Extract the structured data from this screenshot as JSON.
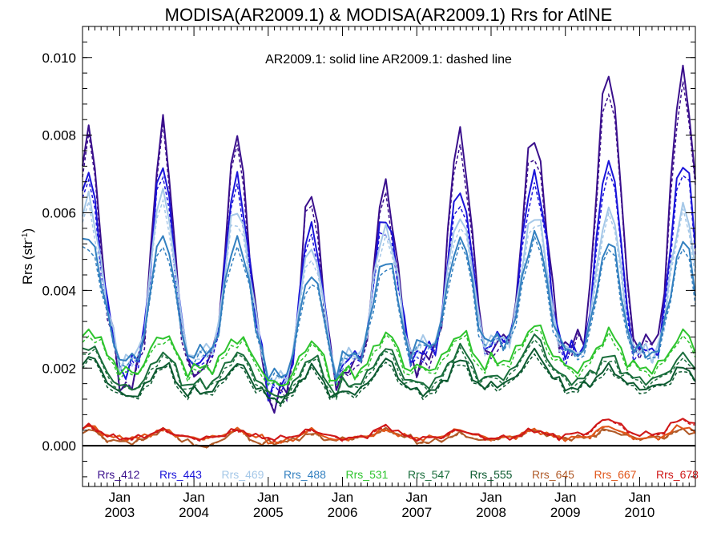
{
  "chart_data": {
    "type": "line",
    "title": "MODISA(AR2009.1) & MODISA(AR2009.1)  Rrs for AtlNE",
    "ylabel": "Rrs (str",
    "ylabel_sup": "-1",
    "annotation": "AR2009.1: solid line   AR2009.1: dashed line",
    "x_unit": "month index starting Jul 2002",
    "xlim": [
      0,
      99
    ],
    "ylim": [
      -0.00105,
      0.0108
    ],
    "yticks": [
      0.0,
      0.002,
      0.004,
      0.006,
      0.008,
      0.01
    ],
    "ytick_labels": [
      "0.000",
      "0.002",
      "0.004",
      "0.006",
      "0.008",
      "0.010"
    ],
    "xticks": [
      {
        "month": 6,
        "label_top": "Jan",
        "label_bottom": "2003"
      },
      {
        "month": 18,
        "label_top": "Jan",
        "label_bottom": "2004"
      },
      {
        "month": 30,
        "label_top": "Jan",
        "label_bottom": "2005"
      },
      {
        "month": 42,
        "label_top": "Jan",
        "label_bottom": "2006"
      },
      {
        "month": 54,
        "label_top": "Jan",
        "label_bottom": "2007"
      },
      {
        "month": 66,
        "label_top": "Jan",
        "label_bottom": "2008"
      },
      {
        "month": 78,
        "label_top": "Jan",
        "label_bottom": "2009"
      },
      {
        "month": 90,
        "label_top": "Jan",
        "label_bottom": "2010"
      }
    ],
    "grid": false,
    "legend_placement": "bottom",
    "series": [
      {
        "name": "Rrs_412",
        "color": "#3a0f8c",
        "peaks": [
          0.008,
          0.0081,
          0.0079,
          0.0065,
          0.0067,
          0.0081,
          0.0081,
          0.0098
        ],
        "troughs": [
          0.0024,
          0.0016,
          0.002,
          0.0012,
          0.002,
          0.0022,
          0.0026,
          0.0026
        ],
        "noise": 0.00045
      },
      {
        "name": "Rrs_443",
        "color": "#1a14d9",
        "peaks": [
          0.007,
          0.0072,
          0.0069,
          0.0057,
          0.006,
          0.0067,
          0.0071,
          0.0075
        ],
        "troughs": [
          0.0026,
          0.002,
          0.0022,
          0.0015,
          0.0022,
          0.0024,
          0.0027,
          0.0024
        ],
        "noise": 0.00035
      },
      {
        "name": "Rrs_469",
        "color": "#a5c8e8",
        "peaks": [
          0.0064,
          0.0066,
          0.0062,
          0.0052,
          0.0057,
          0.006,
          0.0061,
          0.0062
        ],
        "troughs": [
          0.0027,
          0.0022,
          0.0024,
          0.0017,
          0.0023,
          0.0026,
          0.0027,
          0.0024
        ],
        "noise": 0.0003
      },
      {
        "name": "Rrs_488",
        "color": "#3380c0",
        "peaks": [
          0.0055,
          0.0055,
          0.0054,
          0.0045,
          0.0049,
          0.0054,
          0.0055,
          0.0053
        ],
        "troughs": [
          0.0027,
          0.0022,
          0.0024,
          0.0018,
          0.0023,
          0.0026,
          0.0027,
          0.0024
        ],
        "noise": 0.00025
      },
      {
        "name": "Rrs_531",
        "color": "#2ec42e",
        "peaks": [
          0.003,
          0.0029,
          0.0028,
          0.0027,
          0.0029,
          0.0029,
          0.0031,
          0.0029
        ],
        "troughs": [
          0.0022,
          0.0019,
          0.002,
          0.0016,
          0.0019,
          0.002,
          0.0022,
          0.002
        ],
        "noise": 0.0002
      },
      {
        "name": "Rrs_547",
        "color": "#1a6e3c",
        "peaks": [
          0.0026,
          0.0024,
          0.0024,
          0.0023,
          0.0025,
          0.0025,
          0.0028,
          0.0023
        ],
        "troughs": [
          0.0017,
          0.0015,
          0.0016,
          0.0013,
          0.0016,
          0.0016,
          0.0018,
          0.0017
        ],
        "noise": 0.00017
      },
      {
        "name": "Rrs_555",
        "color": "#0c5a30",
        "peaks": [
          0.0023,
          0.0021,
          0.0021,
          0.002,
          0.0022,
          0.0022,
          0.0024,
          0.002
        ],
        "troughs": [
          0.0015,
          0.0013,
          0.0014,
          0.0012,
          0.0014,
          0.0014,
          0.0016,
          0.0015
        ],
        "noise": 0.00015
      },
      {
        "name": "Rrs_645",
        "color": "#b05a28",
        "peaks": [
          0.0004,
          0.0004,
          0.0004,
          0.0003,
          0.0004,
          0.0003,
          0.0004,
          0.0004
        ],
        "troughs": [
          0.0001,
          0.0001,
          0.0,
          0.0001,
          0.0002,
          0.0001,
          0.0002,
          0.0002
        ],
        "noise": 8e-05
      },
      {
        "name": "Rrs_667",
        "color": "#e0561a",
        "peaks": [
          0.0005,
          0.0004,
          0.0004,
          0.0004,
          0.0004,
          0.0004,
          0.0004,
          0.0005
        ],
        "troughs": [
          0.0002,
          0.0002,
          0.0002,
          0.0001,
          0.0002,
          0.0002,
          0.0002,
          0.0002
        ],
        "noise": 8e-05
      },
      {
        "name": "Rrs_678",
        "color": "#d01818",
        "peaks": [
          0.0005,
          0.0004,
          0.0004,
          0.0004,
          0.0005,
          0.0004,
          0.0004,
          0.0007
        ],
        "troughs": [
          0.0002,
          0.0002,
          0.0002,
          0.0002,
          0.0002,
          0.0002,
          0.0002,
          0.0003
        ],
        "noise": 8e-05
      }
    ]
  }
}
